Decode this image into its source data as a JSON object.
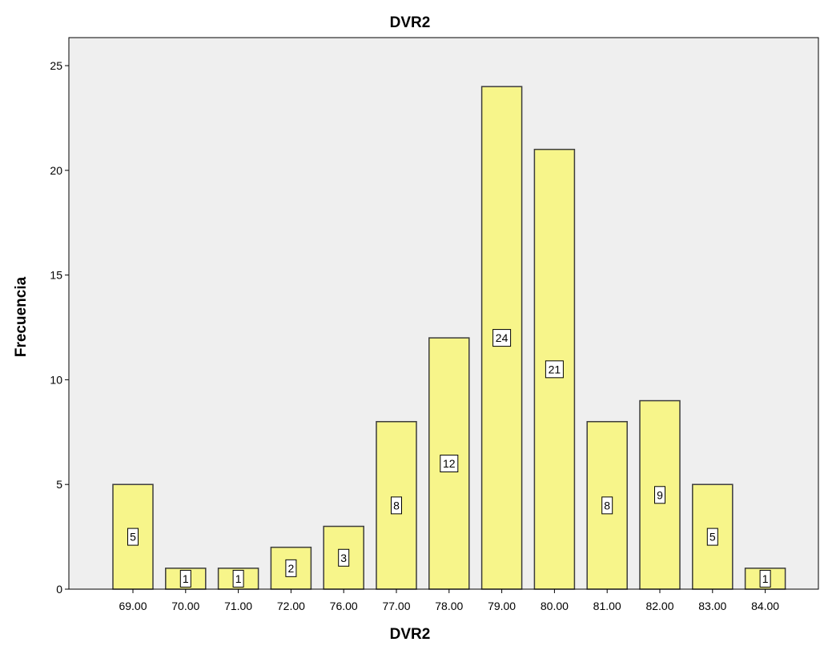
{
  "chart_data": {
    "type": "bar",
    "title": "DVR2",
    "xlabel": "DVR2",
    "ylabel": "Frecuencia",
    "categories": [
      "69.00",
      "70.00",
      "71.00",
      "72.00",
      "76.00",
      "77.00",
      "78.00",
      "79.00",
      "80.00",
      "81.00",
      "82.00",
      "83.00",
      "84.00"
    ],
    "values": [
      5,
      1,
      1,
      2,
      3,
      8,
      12,
      24,
      21,
      8,
      9,
      5,
      1
    ],
    "ylim": [
      0,
      25
    ],
    "yticks": [
      0,
      5,
      10,
      15,
      20,
      25
    ],
    "grid": false,
    "data_labels": true,
    "colors": {
      "bar_fill": "#f7f58a",
      "bar_stroke": "#3c3c3c",
      "plot_background": "#efefef",
      "label_box": "#ffffff"
    }
  }
}
